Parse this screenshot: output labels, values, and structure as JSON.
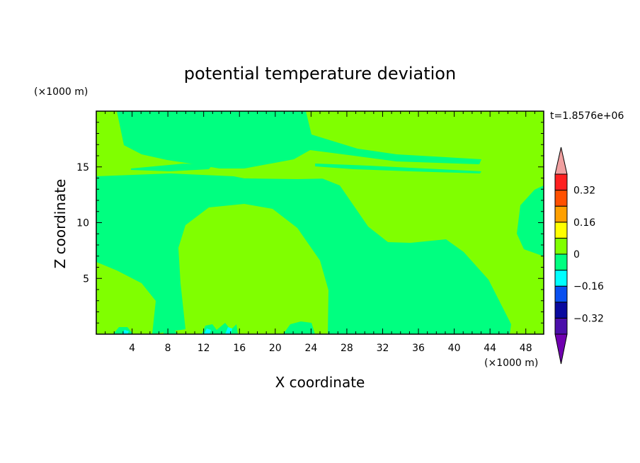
{
  "chart_data": {
    "type": "heatmap",
    "title": "potential temperature deviation",
    "xlabel": "X coordinate",
    "ylabel": "Z coordinate",
    "x_unit": "(×1000 m)",
    "z_unit": "(×1000 m)",
    "time_label": "t=1.8576e+06",
    "xlim": [
      0,
      50
    ],
    "zlim": [
      0,
      20
    ],
    "x_ticks": [
      4,
      8,
      12,
      16,
      20,
      24,
      28,
      32,
      36,
      40,
      44,
      48
    ],
    "z_ticks": [
      5,
      10,
      15
    ],
    "colorbar": {
      "tick_labels": [
        "0.32",
        "0.16",
        "0",
        "−0.16",
        "−0.32"
      ],
      "tick_values": [
        0.32,
        0.16,
        0,
        -0.16,
        -0.32
      ],
      "levels": [
        -0.4,
        -0.32,
        -0.24,
        -0.16,
        -0.08,
        0,
        0.08,
        0.16,
        0.24,
        0.32,
        0.4
      ],
      "colors": [
        "#4b0faa",
        "#0a0a9e",
        "#0a50f0",
        "#00ffff",
        "#00ff80",
        "#80ff00",
        "#ffff00",
        "#ffa000",
        "#ff5000",
        "#ff2020"
      ],
      "under_color": "#7000b0",
      "over_color": "#f0a0a0"
    },
    "regions": [
      {
        "label": "0 to 0.08",
        "color": "#80ff00"
      },
      {
        "label": "-0.08 to 0",
        "color": "#00ff80"
      },
      {
        "label": "-0.16 to -0.08",
        "color": "#00ffff"
      }
    ]
  }
}
